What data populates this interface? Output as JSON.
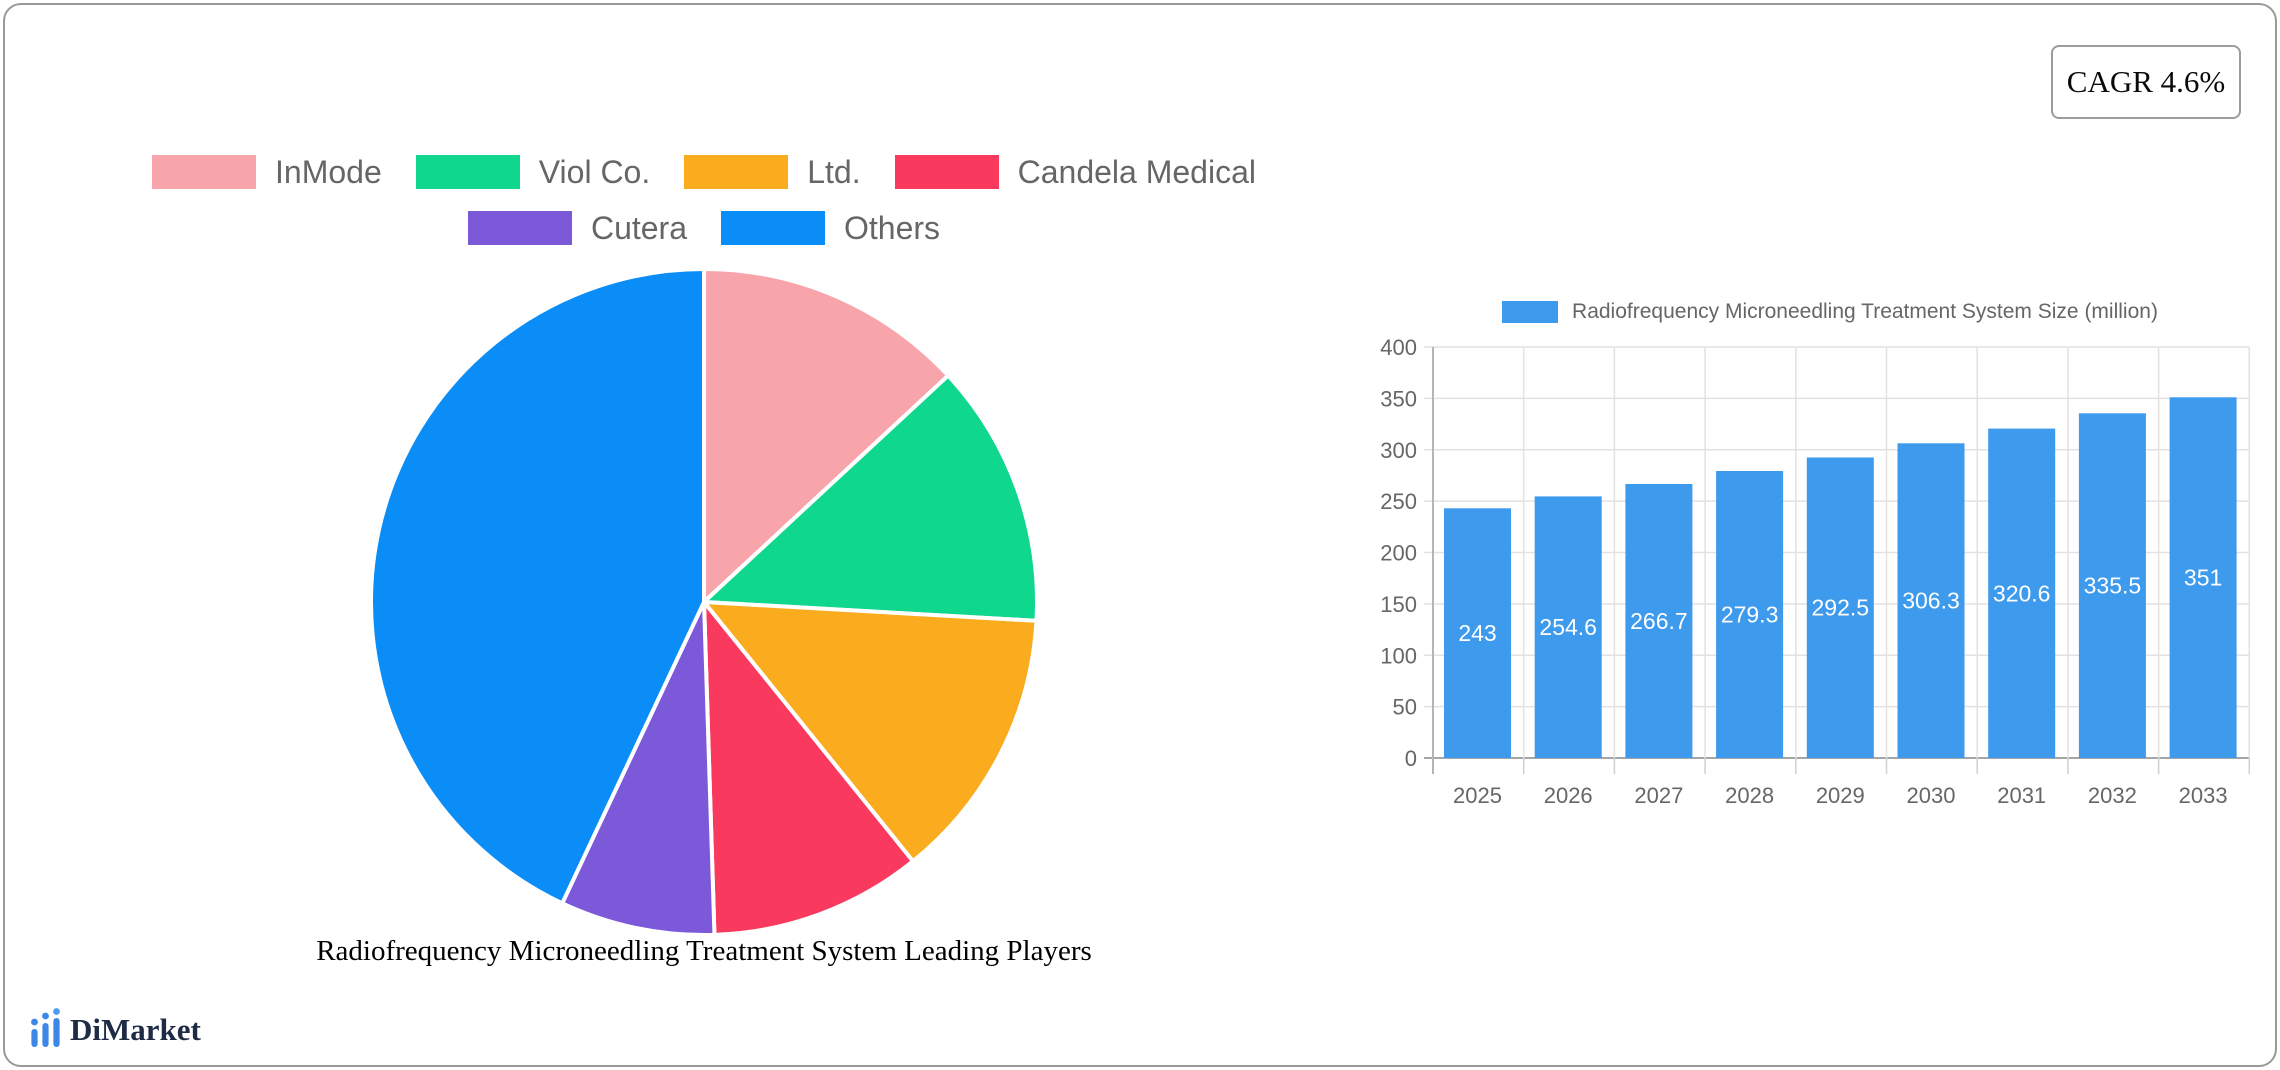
{
  "badge": {
    "text": "CAGR 4.6%"
  },
  "logo": {
    "text": "DiMarket",
    "icon": "bar-chart-icon",
    "icon_color": "#3D87E8",
    "text_color": "#1D2B45"
  },
  "chart_data": [
    {
      "type": "pie",
      "title": "Radiofrequency Microneedling Treatment System Leading Players",
      "direction": "clockwise",
      "start_angle": "top",
      "slices": [
        {
          "label": "InMode",
          "value_pct": 13.1,
          "color": "#F7A4AA"
        },
        {
          "label": "Viol Co.",
          "value_pct": 12.8,
          "color": "#0FD78D"
        },
        {
          "label": "Ltd.",
          "value_pct": 13.3,
          "color": "#FBAB1E"
        },
        {
          "label": "Candela Medical",
          "value_pct": 10.3,
          "color": "#F93A5E"
        },
        {
          "label": "Cutera",
          "value_pct": 7.5,
          "color": "#7C59D9"
        },
        {
          "label": "Others",
          "value_pct": 43.0,
          "color": "#0A8DF7"
        }
      ],
      "legend_rows": [
        [
          0,
          1,
          2,
          3
        ],
        [
          4,
          5
        ]
      ],
      "legend_text_color": "#666666"
    },
    {
      "type": "bar",
      "series_label": "Radiofrequency Microneedling Treatment System Size (million)",
      "categories": [
        "2025",
        "2026",
        "2027",
        "2028",
        "2029",
        "2030",
        "2031",
        "2032",
        "2033"
      ],
      "values": [
        243,
        254.6,
        266.7,
        279.3,
        292.5,
        306.3,
        320.6,
        335.5,
        351
      ],
      "value_labels": [
        "243",
        "254.6",
        "266.7",
        "279.3",
        "292.5",
        "306.3",
        "320.6",
        "335.5",
        "351"
      ],
      "yticks": [
        "0",
        "50",
        "100",
        "150",
        "200",
        "250",
        "300",
        "350",
        "400"
      ],
      "ylim": [
        0,
        400
      ],
      "ytick_step": 50,
      "bar_color": "#3D9AEC",
      "value_label_color": "#ffffff",
      "axis_text_color": "#666666",
      "grid": true,
      "legend_position": "top"
    }
  ]
}
